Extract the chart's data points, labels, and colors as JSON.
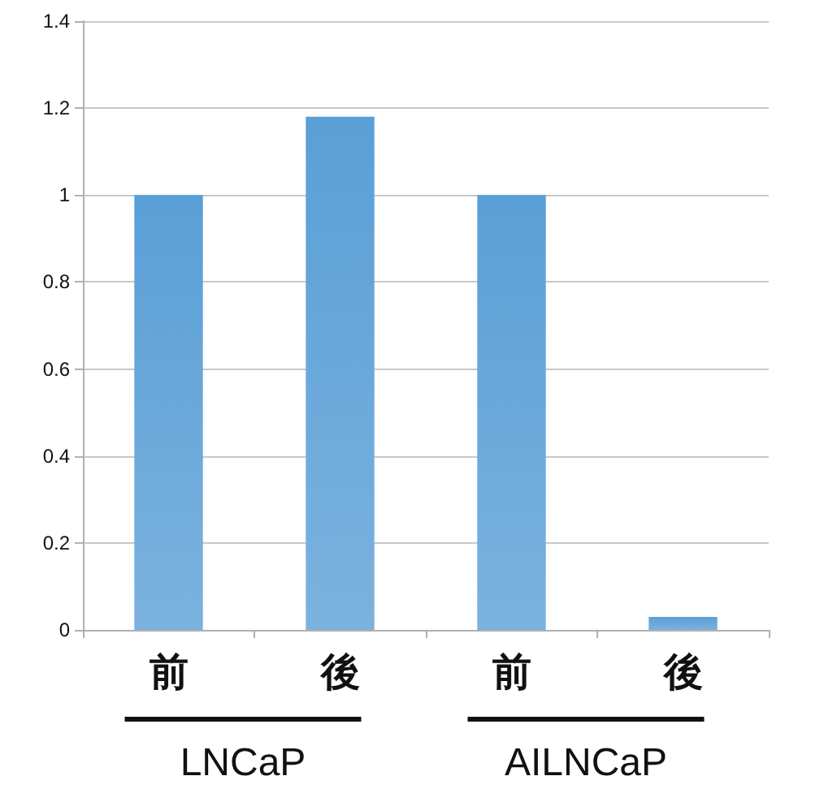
{
  "chart_data": {
    "type": "bar",
    "categories": [
      "前",
      "後",
      "前",
      "後"
    ],
    "values": [
      1,
      1.18,
      1,
      0.03
    ],
    "color": "#5a9fd6",
    "ylim": [
      0,
      1.4
    ],
    "yticks": [
      0,
      0.2,
      0.4,
      0.6,
      0.8,
      1,
      1.2,
      1.4
    ],
    "grid": "y",
    "annotations": [
      "LNCaP",
      "AILNCaP"
    ]
  }
}
